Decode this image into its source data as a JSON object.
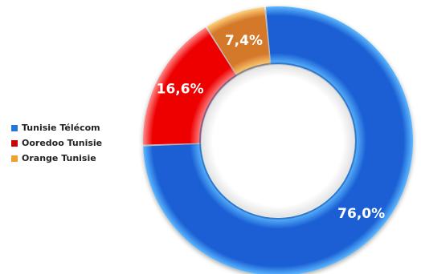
{
  "chart_data": {
    "type": "pie",
    "variant": "donut",
    "categories": [
      "Tunisie Télécom",
      "Ooredoo Tunisie",
      "Orange Tunisie"
    ],
    "values": [
      76.0,
      16.6,
      7.4
    ],
    "data_labels": [
      "76,0%",
      "16,6%",
      "7,4%"
    ],
    "colors": [
      "#1a5fd4",
      "#ee0000",
      "#d4782a"
    ],
    "highlight_colors": [
      "#5cb8ff",
      "#ff8a8a",
      "#ffd27a"
    ],
    "legend_position": "left",
    "legend_swatch_colors": [
      "#2277dd",
      "#cc0000",
      "#f0a030"
    ],
    "title": "",
    "xlabel": "",
    "ylabel": ""
  }
}
